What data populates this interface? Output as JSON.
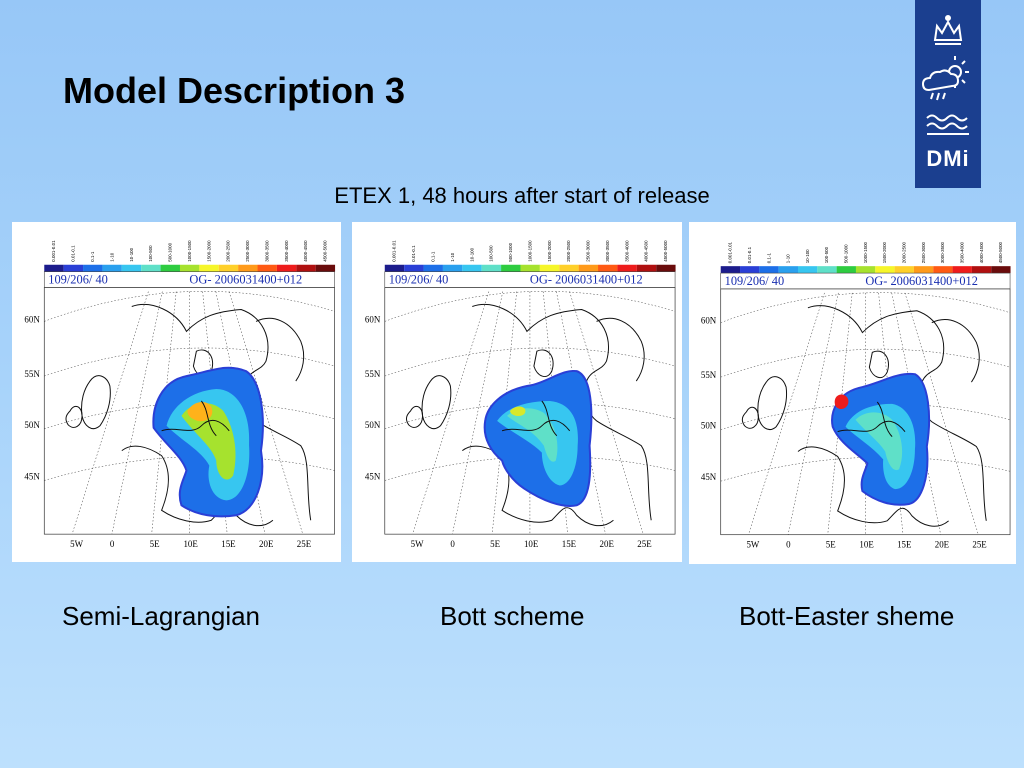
{
  "slide": {
    "title": "Model Description 3",
    "subtitle": "ETEX 1, 48 hours after start of release"
  },
  "logo": {
    "text": "DMi",
    "icons": [
      "crown-icon",
      "sun-cloud-icon",
      "waves-icon"
    ]
  },
  "legend": {
    "ranges": [
      "0.001-0.01",
      "0.01-0.1",
      "0.1-1",
      "1-10",
      "10-100",
      "100-500",
      "500-1000",
      "1000-1500",
      "1500-2000",
      "2000-2500",
      "2500-3000",
      "3000-3500",
      "3500-4000",
      "4000-4500",
      "4500-5000"
    ],
    "colors": [
      "#1c1c8c",
      "#2a3fd6",
      "#1d6fe8",
      "#2aa0ee",
      "#37c6f0",
      "#5fe0c8",
      "#2ecc40",
      "#a6e22e",
      "#f6f62a",
      "#ffd02a",
      "#ff9a1a",
      "#ff5a14",
      "#ee1c1c",
      "#b01010",
      "#6a0c0c"
    ]
  },
  "panels": [
    {
      "header_left": "109/206/  40",
      "header_right": "OG- 2006031400+012",
      "caption": "Semi-Lagrangian",
      "lat_labels": [
        "60N",
        "55N",
        "50N",
        "45N"
      ],
      "lon_labels": [
        "5W",
        "0",
        "5E",
        "10E",
        "15E",
        "20E",
        "25E"
      ]
    },
    {
      "header_left": "109/206/  40",
      "header_right": "OG- 2006031400+012",
      "caption": "Bott scheme",
      "lat_labels": [
        "60N",
        "55N",
        "50N",
        "45N"
      ],
      "lon_labels": [
        "5W",
        "0",
        "5E",
        "10E",
        "15E",
        "20E",
        "25E"
      ]
    },
    {
      "header_left": "109/206/  40",
      "header_right": "OG- 2006031400+012",
      "caption": "Bott-Easter sheme",
      "lat_labels": [
        "60N",
        "55N",
        "50N",
        "45N"
      ],
      "lon_labels": [
        "5W",
        "0",
        "5E",
        "10E",
        "15E",
        "20E",
        "25E"
      ]
    }
  ]
}
